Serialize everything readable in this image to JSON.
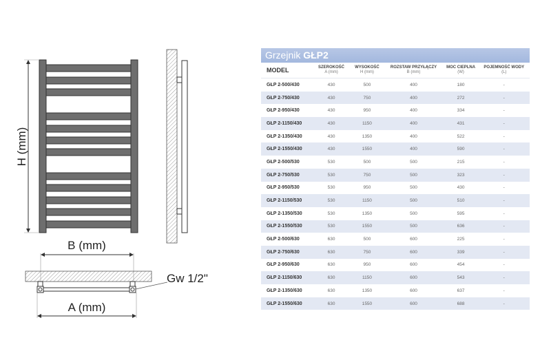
{
  "drawing": {
    "height_label": "H (mm)",
    "spacing_label": "B (mm)",
    "width_label": "A (mm)",
    "thread_label": "Gw 1/2\"",
    "colors": {
      "rail": "#6e6e6e",
      "outline": "#333333",
      "hatch": "#999999"
    }
  },
  "table": {
    "title_prefix": "Grzejnik ",
    "title_model": "GŁP2",
    "header_color": "#a9bde0",
    "stripe_color": "#e3e8f3",
    "columns": [
      {
        "label": "MODEL",
        "unit": ""
      },
      {
        "label": "SZEROKOŚĆ",
        "unit": "A (mm)"
      },
      {
        "label": "WYSOKOŚĆ",
        "unit": "H (mm)"
      },
      {
        "label": "ROZSTAW PRZYŁĄCZY",
        "unit": "B (mm)"
      },
      {
        "label": "MOC CIEPLNA",
        "unit": "(W)"
      },
      {
        "label": "POJEMNOŚĆ WODY",
        "unit": "(L)"
      }
    ],
    "rows": [
      [
        "GŁP 2-500/430",
        "430",
        "500",
        "400",
        "180",
        "-"
      ],
      [
        "GŁP 2-750/430",
        "430",
        "750",
        "400",
        "272",
        "-"
      ],
      [
        "GŁP 2-950/430",
        "430",
        "950",
        "400",
        "334",
        "-"
      ],
      [
        "GŁP 2-1150/430",
        "430",
        "1150",
        "400",
        "431",
        "-"
      ],
      [
        "GŁP 2-1350/430",
        "430",
        "1350",
        "400",
        "522",
        "-"
      ],
      [
        "GŁP 2-1550/430",
        "430",
        "1550",
        "400",
        "590",
        "-"
      ],
      [
        "GŁP 2-500/530",
        "530",
        "500",
        "500",
        "215",
        "-"
      ],
      [
        "GŁP 2-750/530",
        "530",
        "750",
        "500",
        "323",
        "-"
      ],
      [
        "GŁP 2-950/530",
        "530",
        "950",
        "500",
        "430",
        "-"
      ],
      [
        "GŁP 2-1150/530",
        "530",
        "1150",
        "500",
        "510",
        "-"
      ],
      [
        "GŁP 2-1350/530",
        "530",
        "1350",
        "500",
        "595",
        "-"
      ],
      [
        "GŁP 2-1550/530",
        "530",
        "1550",
        "500",
        "636",
        "-"
      ],
      [
        "GŁP 2-500/630",
        "630",
        "500",
        "600",
        "225",
        "-"
      ],
      [
        "GŁP 2-750/630",
        "630",
        "750",
        "600",
        "339",
        "-"
      ],
      [
        "GŁP 2-950/630",
        "630",
        "950",
        "600",
        "454",
        "-"
      ],
      [
        "GŁP 2-1150/630",
        "630",
        "1150",
        "600",
        "543",
        "-"
      ],
      [
        "GŁP 2-1350/630",
        "630",
        "1350",
        "600",
        "637",
        "-"
      ],
      [
        "GŁP 2-1550/630",
        "630",
        "1550",
        "600",
        "688",
        "-"
      ]
    ]
  }
}
